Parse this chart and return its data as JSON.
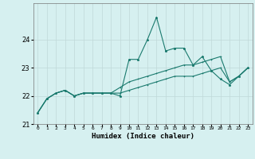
{
  "xlabel": "Humidex (Indice chaleur)",
  "background_color": "#d6f0f0",
  "grid_color": "#c0d8d8",
  "line_color": "#1a7a6e",
  "xlim": [
    -0.5,
    23.5
  ],
  "ylim": [
    21.0,
    25.3
  ],
  "yticks": [
    21,
    22,
    23,
    24
  ],
  "xtick_labels": [
    "0",
    "1",
    "2",
    "3",
    "4",
    "5",
    "6",
    "7",
    "8",
    "9",
    "10",
    "11",
    "12",
    "13",
    "14",
    "15",
    "16",
    "17",
    "18",
    "19",
    "20",
    "21",
    "22",
    "23"
  ],
  "series1": [
    21.4,
    21.9,
    22.1,
    22.2,
    22.0,
    22.1,
    22.1,
    22.1,
    22.1,
    22.0,
    23.3,
    23.3,
    24.0,
    24.8,
    23.6,
    23.7,
    23.7,
    23.1,
    23.4,
    22.9,
    22.6,
    22.4,
    22.7,
    23.0
  ],
  "series2": [
    21.4,
    21.9,
    22.1,
    22.2,
    22.0,
    22.1,
    22.1,
    22.1,
    22.1,
    22.3,
    22.5,
    22.6,
    22.7,
    22.8,
    22.9,
    23.0,
    23.1,
    23.1,
    23.2,
    23.3,
    23.4,
    22.5,
    22.7,
    23.0
  ],
  "series3": [
    21.4,
    21.9,
    22.1,
    22.2,
    22.0,
    22.1,
    22.1,
    22.1,
    22.1,
    22.1,
    22.2,
    22.3,
    22.4,
    22.5,
    22.6,
    22.7,
    22.7,
    22.7,
    22.8,
    22.9,
    23.0,
    22.5,
    22.7,
    23.0
  ]
}
